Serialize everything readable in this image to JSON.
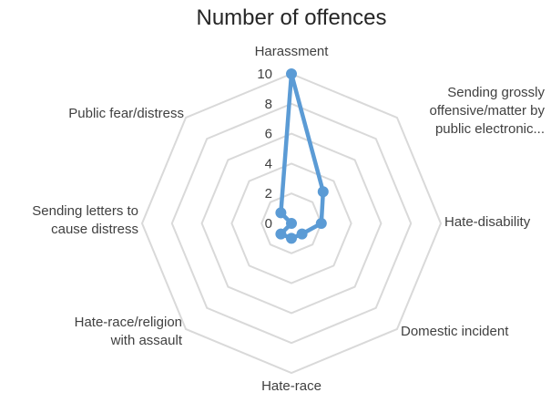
{
  "chart_data": {
    "type": "radar",
    "title": "Number of offences",
    "categories": [
      "Harassment",
      "Sending grossly offensive/matter by public electronic...",
      "Hate-disability",
      "Domestic incident",
      "Hate-race",
      "Hate-race/religion with assault",
      "Sending letters to cause distress",
      "Public fear/distress"
    ],
    "category_lines": [
      [
        "Harassment"
      ],
      [
        "Sending grossly",
        "offensive/matter by",
        "public electronic..."
      ],
      [
        "Hate-disability"
      ],
      [
        "Domestic incident"
      ],
      [
        "Hate-race"
      ],
      [
        "Hate-race/religion",
        "with assault"
      ],
      [
        "Sending letters to",
        "cause distress"
      ],
      [
        "Public fear/distress"
      ]
    ],
    "series": [
      {
        "values": [
          10,
          3,
          2,
          1,
          1,
          1,
          0,
          1
        ],
        "color": "#5B9BD5"
      }
    ],
    "ticks": [
      "0",
      "2",
      "4",
      "6",
      "8",
      "10"
    ],
    "rlim": [
      0,
      10
    ],
    "grid": true,
    "grid_color": "#D9D9D9",
    "legend": "none"
  }
}
